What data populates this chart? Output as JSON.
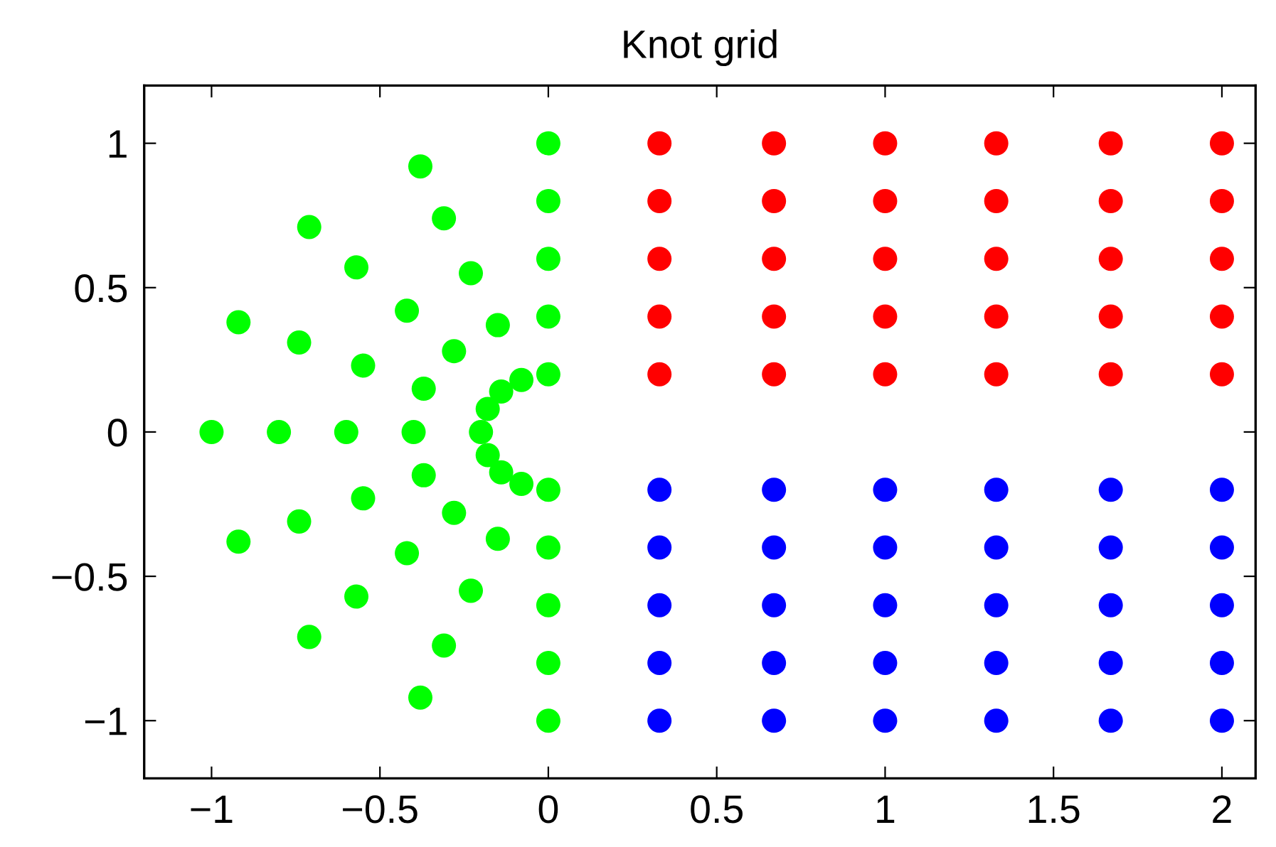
{
  "chart_data": {
    "type": "scatter",
    "title": "Knot grid",
    "marker": "circle",
    "grid": false,
    "legend": false,
    "xlim": [
      -1.2,
      2.1
    ],
    "ylim": [
      -1.2,
      1.2
    ],
    "xticks": [
      {
        "value": -1,
        "label": "−1"
      },
      {
        "value": -0.5,
        "label": "−0.5"
      },
      0,
      0.5,
      1,
      1.5,
      2
    ],
    "yticks": [
      {
        "value": -1,
        "label": "−1"
      },
      {
        "value": -0.5,
        "label": "−0.5"
      },
      0,
      0.5,
      1
    ],
    "series": [
      {
        "color": "#00ff00",
        "x": [
          0,
          -0.38,
          -0.71,
          -0.92,
          -1,
          -0.92,
          -0.71,
          -0.38,
          0,
          0,
          -0.31,
          -0.57,
          -0.74,
          -0.8,
          -0.74,
          -0.57,
          -0.31,
          0,
          0,
          -0.23,
          -0.42,
          -0.55,
          -0.6,
          -0.55,
          -0.42,
          -0.23,
          0,
          0,
          -0.15,
          -0.28,
          -0.37,
          -0.4,
          -0.37,
          -0.28,
          -0.15,
          0,
          0,
          -0.08,
          -0.14,
          -0.18,
          -0.2,
          -0.18,
          -0.14,
          -0.08,
          0
        ],
        "values": [
          1,
          0.92,
          0.71,
          0.38,
          0,
          -0.38,
          -0.71,
          -0.92,
          -1,
          0.8,
          0.74,
          0.57,
          0.31,
          0,
          -0.31,
          -0.57,
          -0.74,
          -0.8,
          0.6,
          0.55,
          0.42,
          0.23,
          0,
          -0.23,
          -0.42,
          -0.55,
          -0.6,
          0.4,
          0.37,
          0.28,
          0.15,
          0,
          -0.15,
          -0.28,
          -0.37,
          -0.4,
          0.2,
          0.18,
          0.14,
          0.08,
          0,
          -0.08,
          -0.14,
          -0.18,
          -0.2
        ]
      },
      {
        "color": "#ff0000",
        "x": [
          0.33,
          0.67,
          1,
          1.33,
          1.67,
          2,
          0.33,
          0.67,
          1,
          1.33,
          1.67,
          2,
          0.33,
          0.67,
          1,
          1.33,
          1.67,
          2,
          0.33,
          0.67,
          1,
          1.33,
          1.67,
          2,
          0.33,
          0.67,
          1,
          1.33,
          1.67,
          2
        ],
        "values": [
          1,
          1,
          1,
          1,
          1,
          1,
          0.8,
          0.8,
          0.8,
          0.8,
          0.8,
          0.8,
          0.6,
          0.6,
          0.6,
          0.6,
          0.6,
          0.6,
          0.4,
          0.4,
          0.4,
          0.4,
          0.4,
          0.4,
          0.2,
          0.2,
          0.2,
          0.2,
          0.2,
          0.2
        ]
      },
      {
        "color": "#0000ff",
        "x": [
          0.33,
          0.67,
          1,
          1.33,
          1.67,
          2,
          0.33,
          0.67,
          1,
          1.33,
          1.67,
          2,
          0.33,
          0.67,
          1,
          1.33,
          1.67,
          2,
          0.33,
          0.67,
          1,
          1.33,
          1.67,
          2,
          0.33,
          0.67,
          1,
          1.33,
          1.67,
          2
        ],
        "values": [
          -0.2,
          -0.2,
          -0.2,
          -0.2,
          -0.2,
          -0.2,
          -0.4,
          -0.4,
          -0.4,
          -0.4,
          -0.4,
          -0.4,
          -0.6,
          -0.6,
          -0.6,
          -0.6,
          -0.6,
          -0.6,
          -0.8,
          -0.8,
          -0.8,
          -0.8,
          -0.8,
          -0.8,
          -1,
          -1,
          -1,
          -1,
          -1,
          -1
        ]
      }
    ]
  }
}
